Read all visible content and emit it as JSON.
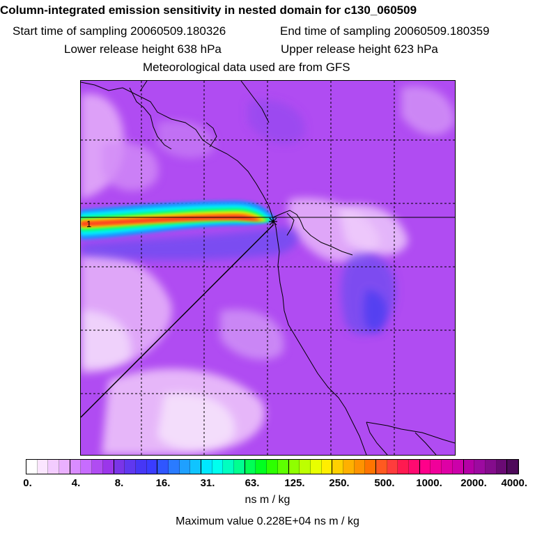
{
  "header": {
    "title": "Column-integrated emission sensitivity in nested domain for c130_060509",
    "start_time": "Start time of sampling 20060509.180326",
    "end_time": "End time of sampling 20060509.180359",
    "lower_release": "Lower release height  638 hPa",
    "upper_release": "Upper release height  623 hPa",
    "met_data": "Meteorological data used are from GFS"
  },
  "map": {
    "plume_marker_label": "1",
    "colors": {
      "background": "#b04cf2",
      "light": "#e7b6f9",
      "lighter": "#f3dcfb",
      "blue": "#6a4cf0",
      "plume_core": "#ff2b2b",
      "plume_orange": "#ff9a00",
      "plume_yellow": "#e8ff00",
      "plume_green": "#00ff66",
      "plume_cyan": "#00f0ff",
      "plume_blue": "#1f8fff"
    }
  },
  "colorbar": {
    "tick_labels": [
      "0.",
      "4.",
      "8.",
      "16.",
      "31.",
      "63.",
      "125.",
      "250.",
      "500.",
      "1000.",
      "2000.",
      "4000."
    ],
    "segment_colors": [
      "#ffffff",
      "#fbe6ff",
      "#f3ccff",
      "#eab0ff",
      "#d98cff",
      "#c76cff",
      "#b04cf2",
      "#9b36ea",
      "#7a35e8",
      "#5f38ef",
      "#4637f5",
      "#3a3cff",
      "#2f56ff",
      "#2a7bff",
      "#1fa0ff",
      "#10c4ff",
      "#00e8ff",
      "#00ffee",
      "#00ffc0",
      "#00ff90",
      "#00ff55",
      "#00ff20",
      "#2dff00",
      "#5dff00",
      "#8fff00",
      "#bdff00",
      "#e8ff00",
      "#ffee00",
      "#ffd000",
      "#ffb000",
      "#ff9300",
      "#ff7400",
      "#ff5a20",
      "#ff3c3c",
      "#ff1a50",
      "#ff0a70",
      "#ff008a",
      "#f0009a",
      "#de00a5",
      "#cc00aa",
      "#b400a6",
      "#9c0aa0",
      "#840c8c",
      "#6a0a74",
      "#4e0a5a"
    ],
    "units": "ns m / kg"
  },
  "footer": {
    "max_value": "Maximum value  0.228E+04 ns m / kg"
  }
}
